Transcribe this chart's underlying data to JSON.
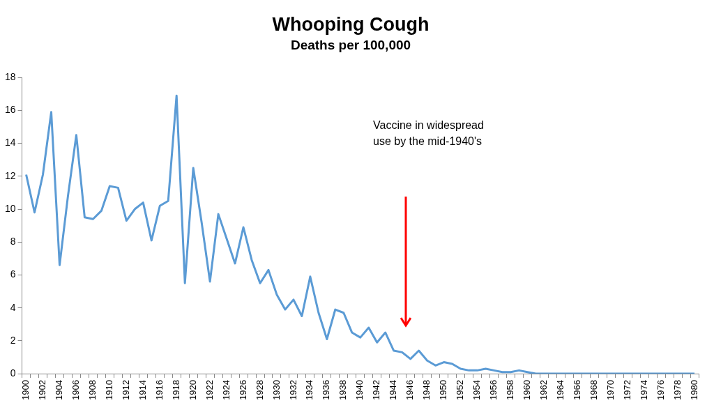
{
  "chart_data": {
    "type": "line",
    "title": "Whooping Cough",
    "subtitle": "Deaths per 100,000",
    "categories": [
      "1900",
      null,
      "1902",
      null,
      "1904",
      null,
      "1906",
      null,
      "1908",
      null,
      "1910",
      null,
      "1912",
      null,
      "1914",
      null,
      "1916",
      null,
      "1918",
      null,
      "1920",
      null,
      "1922",
      null,
      "1924",
      null,
      "1926",
      null,
      "1928",
      null,
      "1930",
      null,
      "1932",
      null,
      "1934",
      null,
      "1936",
      null,
      "1938",
      null,
      "1940",
      null,
      "1942",
      null,
      "1944",
      null,
      "1946",
      null,
      "1948",
      null,
      "1950",
      null,
      "1952",
      null,
      "1954",
      null,
      "1956",
      null,
      "1958",
      null,
      "1960",
      null,
      "1962",
      null,
      "1964",
      null,
      "1966",
      null,
      "1968",
      null,
      "1970",
      null,
      "1972",
      null,
      "1974",
      null,
      "1976",
      null,
      "1978",
      null,
      "1980"
    ],
    "series": [
      {
        "color": "#5b9bd5",
        "values": [
          12.1,
          9.8,
          12.1,
          15.9,
          6.6,
          10.8,
          14.5,
          9.5,
          9.4,
          9.9,
          11.4,
          11.3,
          9.3,
          10.0,
          10.4,
          8.1,
          10.2,
          10.5,
          16.9,
          5.5,
          12.5,
          9.2,
          5.6,
          9.7,
          8.2,
          6.7,
          8.9,
          6.9,
          5.5,
          6.3,
          4.8,
          3.9,
          4.5,
          3.5,
          5.9,
          3.7,
          2.1,
          3.9,
          3.7,
          2.5,
          2.2,
          2.8,
          1.9,
          2.5,
          1.4,
          1.3,
          0.9,
          1.4,
          0.8,
          0.5,
          0.7,
          0.6,
          0.3,
          0.2,
          0.2,
          0.3,
          0.2,
          0.1,
          0.1,
          0.2,
          0.1,
          0,
          0,
          0,
          0,
          0,
          0,
          0,
          0,
          0,
          0,
          0,
          0,
          0,
          0,
          0,
          0,
          0,
          0,
          0,
          0
        ]
      }
    ],
    "ylim": [
      0,
      18
    ],
    "yticks": [
      0,
      2,
      4,
      6,
      8,
      10,
      12,
      14,
      16,
      18
    ],
    "grid": false,
    "legend": false,
    "marker": "none",
    "line_style": "solid",
    "annotations": [
      "Vaccine in widespread use by the mid-1940's"
    ]
  }
}
